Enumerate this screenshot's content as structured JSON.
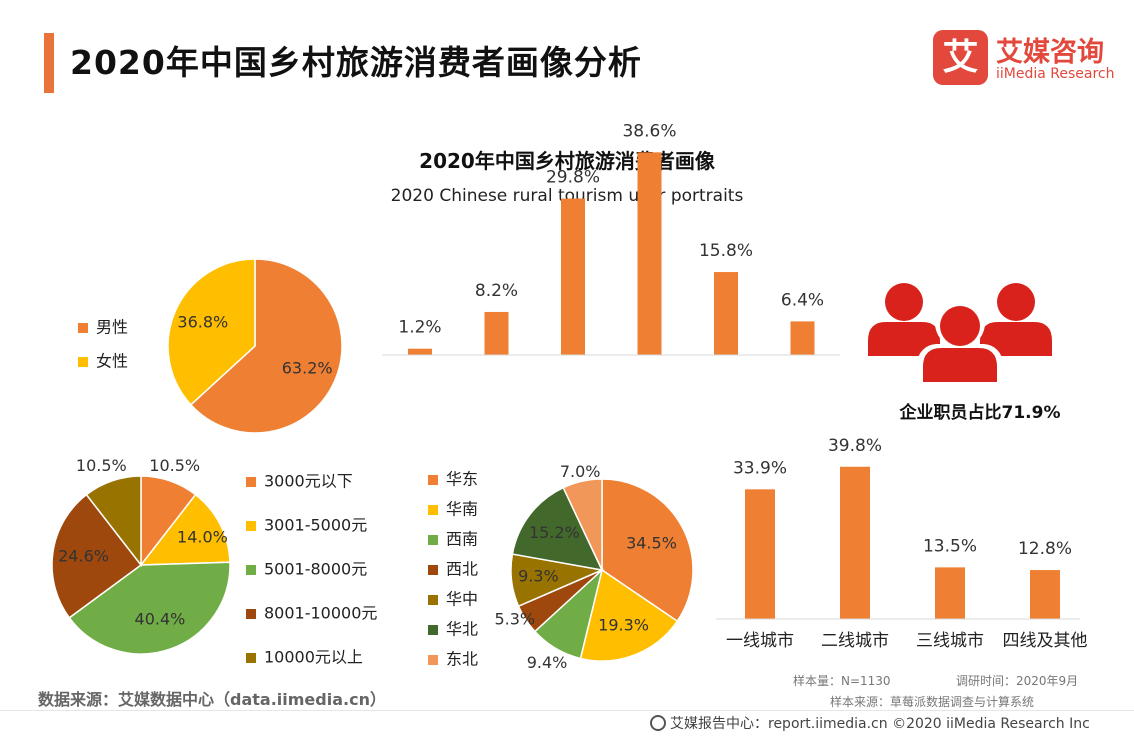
{
  "page_title": "2020年中国乡村旅游消费者画像分析",
  "logo": {
    "mark": "艾",
    "cn": "艾媒咨询",
    "en": "iiMedia Research"
  },
  "chart_title": "2020年中国乡村旅游消费者画像",
  "chart_subtitle": "2020 Chinese rural tourism user portraits",
  "employee_label": "企业职员占比71.9%",
  "source_note": "数据来源：艾媒数据中心（data.iimedia.cn）",
  "sample_size": "样本量：N=1130",
  "survey_time": "调研时间：2020年9月",
  "sample_source": "样本来源：草莓派数据调查与计算系统",
  "footer": "艾媒报告中心：report.iimedia.cn  ©2020  iiMedia Research  Inc",
  "icons": {
    "people": "people-group-icon",
    "footer": "globe-icon"
  },
  "colors": {
    "orange": "#ef7f33",
    "yellow": "#ffbf00",
    "green": "#70ad47",
    "brown": "#9e480e",
    "olive": "#997300",
    "darkgreen": "#43682b",
    "peach": "#f1975a",
    "people": "#d9221b",
    "brand": "#e2483b"
  },
  "chart_data": [
    {
      "type": "pie",
      "id": "gender",
      "categories": [
        "男性",
        "女性"
      ],
      "values": [
        63.2,
        36.8
      ],
      "labels": [
        "63.2%",
        "36.8%"
      ],
      "legend": "left",
      "colors": [
        "#ef7f33",
        "#ffbf00"
      ]
    },
    {
      "type": "bar",
      "id": "age",
      "values": [
        1.2,
        8.2,
        29.8,
        38.6,
        15.8,
        6.4
      ],
      "labels": [
        "1.2%",
        "8.2%",
        "29.8%",
        "38.6%",
        "15.8%",
        "6.4%"
      ],
      "ylim": [
        0,
        40
      ]
    },
    {
      "type": "pie",
      "id": "income",
      "categories": [
        "3000元以下",
        "3001-5000元",
        "5001-8000元",
        "8001-10000元",
        "10000元以上"
      ],
      "values": [
        10.5,
        14.0,
        40.4,
        24.6,
        10.5
      ],
      "labels": [
        "10.5%",
        "14.0%",
        "40.4%",
        "24.6%",
        "10.5%"
      ],
      "legend": "right",
      "colors": [
        "#ef7f33",
        "#ffbf00",
        "#70ad47",
        "#9e480e",
        "#997300"
      ]
    },
    {
      "type": "pie",
      "id": "region",
      "categories": [
        "华东",
        "华南",
        "西南",
        "西北",
        "华中",
        "华北",
        "东北"
      ],
      "values": [
        34.5,
        19.3,
        9.4,
        5.3,
        9.3,
        15.2,
        7.0
      ],
      "labels": [
        "34.5%",
        "19.3%",
        "9.4%",
        "5.3%",
        "9.3%",
        "15.2%",
        "7.0%"
      ],
      "legend": "left",
      "colors": [
        "#ef7f33",
        "#ffbf00",
        "#70ad47",
        "#9e480e",
        "#997300",
        "#43682b",
        "#f1975a"
      ]
    },
    {
      "type": "bar",
      "id": "city",
      "categories": [
        "一线城市",
        "二线城市",
        "三线城市",
        "四线及其他"
      ],
      "values": [
        33.9,
        39.8,
        13.5,
        12.8
      ],
      "labels": [
        "33.9%",
        "39.8%",
        "13.5%",
        "12.8%"
      ],
      "ylim": [
        0,
        40
      ]
    }
  ]
}
